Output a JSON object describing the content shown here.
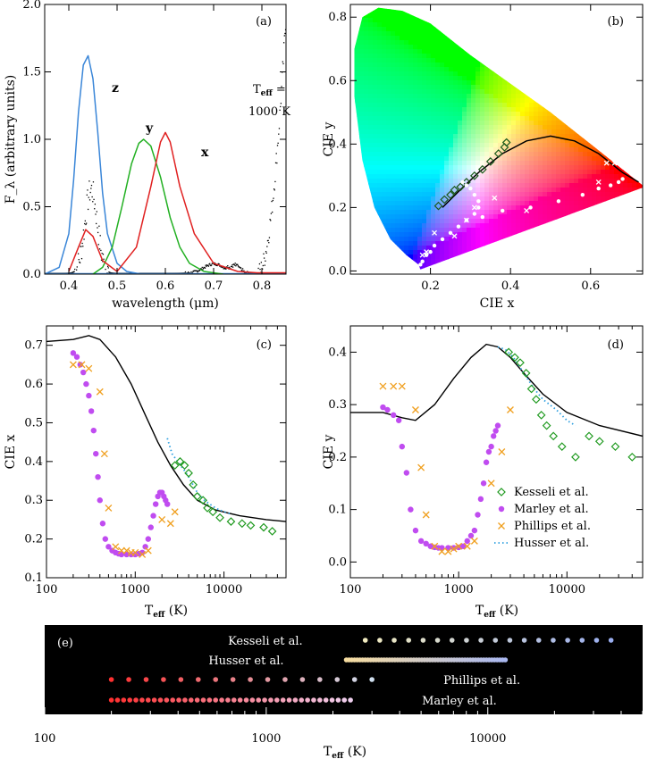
{
  "colors": {
    "z": "#3a86d8",
    "y": "#22b022",
    "x": "#e02020",
    "kesseli": "#1f9a1f",
    "marley": "#c04cf0",
    "phillips": "#f0a020",
    "husser": "#30a0e0",
    "locus": "#000000"
  },
  "chart_data": [
    {
      "id": "a",
      "type": "line",
      "panel_label": "(a)",
      "xlabel": "wavelength (μm)",
      "ylabel": "F_λ (arbitrary units)",
      "xlim": [
        0.35,
        0.85
      ],
      "ylim": [
        0,
        2.0
      ],
      "xticks": [
        0.4,
        0.5,
        0.6,
        0.7,
        0.8
      ],
      "yticks": [
        0.0,
        0.5,
        1.0,
        1.5,
        2.0
      ],
      "xtick_labels": [
        "0.4",
        "0.5",
        "0.6",
        "0.7",
        "0.8"
      ],
      "ytick_labels": [
        "0.0",
        "0.5",
        "1.0",
        "1.5",
        "2.0"
      ],
      "annotation": {
        "teff_label": "T",
        "teff_sub": "eff",
        "teff_eq": " =",
        "teff_value": "1000 K"
      },
      "series": [
        {
          "name": "z",
          "color_key": "z",
          "x": [
            0.35,
            0.38,
            0.4,
            0.41,
            0.42,
            0.43,
            0.44,
            0.45,
            0.46,
            0.47,
            0.48,
            0.5,
            0.52,
            0.55
          ],
          "y": [
            0,
            0.05,
            0.3,
            0.7,
            1.2,
            1.55,
            1.62,
            1.45,
            1.05,
            0.6,
            0.3,
            0.08,
            0.02,
            0
          ]
        },
        {
          "name": "y",
          "color_key": "y",
          "x": [
            0.45,
            0.47,
            0.49,
            0.51,
            0.53,
            0.545,
            0.555,
            0.57,
            0.59,
            0.61,
            0.63,
            0.65,
            0.68,
            0.72
          ],
          "y": [
            0,
            0.05,
            0.2,
            0.5,
            0.82,
            0.97,
            1.0,
            0.95,
            0.72,
            0.42,
            0.2,
            0.08,
            0.02,
            0
          ]
        },
        {
          "name": "x",
          "color_key": "x",
          "x": [
            0.4,
            0.42,
            0.435,
            0.45,
            0.47,
            0.5,
            0.54,
            0.57,
            0.59,
            0.6,
            0.61,
            0.63,
            0.66,
            0.7,
            0.75,
            0.79,
            0.85
          ],
          "y": [
            0.02,
            0.2,
            0.33,
            0.28,
            0.1,
            0.02,
            0.2,
            0.65,
            0.98,
            1.05,
            0.98,
            0.65,
            0.3,
            0.08,
            0.02,
            0.01,
            0.01
          ]
        }
      ],
      "spectrum_peaks": [
        {
          "center": 0.445,
          "width": 0.018,
          "height": 0.62,
          "noise": 0.2
        },
        {
          "center": 0.7,
          "width": 0.03,
          "height": 0.07,
          "noise": 0.02
        },
        {
          "center": 0.745,
          "width": 0.015,
          "height": 0.05,
          "noise": 0.02
        }
      ]
    },
    {
      "id": "b",
      "type": "scatter",
      "panel_label": "(b)",
      "xlabel": "CIE x",
      "ylabel": "CIE y",
      "xlim": [
        0.0,
        0.73
      ],
      "ylim": [
        -0.01,
        0.84
      ],
      "xticks": [
        0.2,
        0.4,
        0.6
      ],
      "yticks": [
        0.0,
        0.2,
        0.4,
        0.6,
        0.8
      ],
      "xtick_labels": [
        "0.2",
        "0.4",
        "0.6"
      ],
      "ytick_labels": [
        "0.0",
        "0.2",
        "0.4",
        "0.6",
        "0.8"
      ],
      "gamut": [
        [
          0.175,
          0.005
        ],
        [
          0.17,
          0.02
        ],
        [
          0.14,
          0.05
        ],
        [
          0.1,
          0.1
        ],
        [
          0.06,
          0.2
        ],
        [
          0.03,
          0.35
        ],
        [
          0.01,
          0.55
        ],
        [
          0.01,
          0.7
        ],
        [
          0.03,
          0.8
        ],
        [
          0.07,
          0.83
        ],
        [
          0.13,
          0.82
        ],
        [
          0.2,
          0.78
        ],
        [
          0.3,
          0.68
        ],
        [
          0.4,
          0.59
        ],
        [
          0.5,
          0.5
        ],
        [
          0.6,
          0.4
        ],
        [
          0.68,
          0.32
        ],
        [
          0.735,
          0.265
        ],
        [
          0.175,
          0.005
        ]
      ],
      "locus": {
        "x": [
          0.23,
          0.27,
          0.32,
          0.38,
          0.44,
          0.5,
          0.56,
          0.62,
          0.68,
          0.72
        ],
        "y": [
          0.2,
          0.25,
          0.31,
          0.37,
          0.41,
          0.425,
          0.41,
          0.37,
          0.31,
          0.28
        ]
      },
      "kesseli": {
        "x": [
          0.22,
          0.235,
          0.25,
          0.26,
          0.275,
          0.29,
          0.31,
          0.33,
          0.35,
          0.37,
          0.385,
          0.39
        ],
        "y": [
          0.205,
          0.225,
          0.24,
          0.255,
          0.265,
          0.28,
          0.3,
          0.32,
          0.345,
          0.37,
          0.39,
          0.405
        ]
      },
      "marley": {
        "x": [
          0.175,
          0.18,
          0.19,
          0.2,
          0.21,
          0.23,
          0.25,
          0.27,
          0.29,
          0.31,
          0.32,
          0.32,
          0.31,
          0.3,
          0.29,
          0.28,
          0.33,
          0.38,
          0.45,
          0.52,
          0.58,
          0.62,
          0.65,
          0.67,
          0.68
        ],
        "y": [
          0.02,
          0.03,
          0.05,
          0.06,
          0.08,
          0.1,
          0.12,
          0.14,
          0.16,
          0.18,
          0.2,
          0.22,
          0.24,
          0.26,
          0.27,
          0.28,
          0.17,
          0.19,
          0.2,
          0.22,
          0.24,
          0.26,
          0.27,
          0.28,
          0.29
        ]
      },
      "phillips": {
        "x": [
          0.18,
          0.19,
          0.21,
          0.26,
          0.29,
          0.31,
          0.36,
          0.44,
          0.62,
          0.64,
          0.66
        ],
        "y": [
          0.05,
          0.06,
          0.12,
          0.11,
          0.16,
          0.2,
          0.23,
          0.19,
          0.28,
          0.34,
          0.34
        ]
      },
      "husser": {
        "x": [
          0.24,
          0.26,
          0.28,
          0.3
        ],
        "y": [
          0.23,
          0.25,
          0.27,
          0.29
        ]
      }
    },
    {
      "id": "c",
      "type": "scatter",
      "panel_label": "(c)",
      "xlabel": "T_eff (K)",
      "ylabel": "CIE x",
      "xscale": "log",
      "xlim": [
        100,
        50000
      ],
      "ylim": [
        0.1,
        0.75
      ],
      "xticks": [
        100,
        1000,
        10000
      ],
      "xtick_labels": [
        "100",
        "1000",
        "10000"
      ],
      "yticks": [
        0.1,
        0.2,
        0.3,
        0.4,
        0.5,
        0.6,
        0.7
      ],
      "ytick_labels": [
        "0.1",
        "0.2",
        "0.3",
        "0.4",
        "0.5",
        "0.6",
        "0.7"
      ],
      "locus": {
        "x": [
          100,
          200,
          300,
          400,
          600,
          900,
          1300,
          1800,
          2500,
          3500,
          5000,
          8000,
          15000,
          30000,
          50000
        ],
        "y": [
          0.71,
          0.715,
          0.725,
          0.715,
          0.67,
          0.6,
          0.52,
          0.45,
          0.39,
          0.34,
          0.3,
          0.275,
          0.26,
          0.25,
          0.245
        ]
      },
      "kesseli": {
        "x": [
          2800,
          3200,
          3600,
          4000,
          4500,
          5000,
          5800,
          6500,
          7500,
          9000,
          12000,
          16000,
          20000,
          28000,
          35000
        ],
        "y": [
          0.39,
          0.4,
          0.39,
          0.37,
          0.34,
          0.31,
          0.3,
          0.28,
          0.27,
          0.255,
          0.245,
          0.24,
          0.235,
          0.23,
          0.22
        ]
      },
      "marley": {
        "x": [
          200,
          220,
          240,
          260,
          280,
          300,
          320,
          340,
          360,
          380,
          400,
          430,
          460,
          500,
          550,
          600,
          650,
          700,
          800,
          900,
          1000,
          1100,
          1200,
          1300,
          1400,
          1500,
          1600,
          1700,
          1800,
          1900,
          2000,
          2100,
          2200,
          2300
        ],
        "y": [
          0.68,
          0.67,
          0.65,
          0.63,
          0.6,
          0.57,
          0.53,
          0.48,
          0.42,
          0.36,
          0.3,
          0.24,
          0.2,
          0.18,
          0.17,
          0.165,
          0.162,
          0.16,
          0.16,
          0.16,
          0.16,
          0.162,
          0.165,
          0.18,
          0.2,
          0.23,
          0.26,
          0.29,
          0.31,
          0.32,
          0.32,
          0.31,
          0.3,
          0.29
        ]
      },
      "phillips": {
        "x": [
          200,
          250,
          300,
          400,
          450,
          500,
          600,
          700,
          800,
          900,
          1000,
          1200,
          1400,
          2000,
          2500,
          2800
        ],
        "y": [
          0.65,
          0.65,
          0.64,
          0.58,
          0.42,
          0.28,
          0.18,
          0.17,
          0.17,
          0.165,
          0.165,
          0.16,
          0.17,
          0.25,
          0.24,
          0.27
        ]
      },
      "husser": {
        "x": [
          2300,
          2600,
          3000,
          3500,
          4000,
          5000,
          6000,
          8000,
          10000,
          12000
        ],
        "y": [
          0.46,
          0.42,
          0.4,
          0.38,
          0.36,
          0.32,
          0.3,
          0.28,
          0.27,
          0.265
        ]
      }
    },
    {
      "id": "d",
      "type": "scatter",
      "panel_label": "(d)",
      "xlabel": "T_eff (K)",
      "ylabel": "CIE y",
      "xscale": "log",
      "xlim": [
        100,
        50000
      ],
      "ylim": [
        -0.03,
        0.45
      ],
      "xticks": [
        100,
        1000,
        10000
      ],
      "xtick_labels": [
        "100",
        "1000",
        "10000"
      ],
      "yticks": [
        0.0,
        0.1,
        0.2,
        0.3,
        0.4
      ],
      "ytick_labels": [
        "0.0",
        "0.1",
        "0.2",
        "0.3",
        "0.4"
      ],
      "locus": {
        "x": [
          100,
          200,
          300,
          400,
          600,
          900,
          1300,
          1800,
          2300,
          3000,
          4000,
          6000,
          10000,
          20000,
          50000
        ],
        "y": [
          0.285,
          0.285,
          0.275,
          0.27,
          0.3,
          0.35,
          0.39,
          0.415,
          0.41,
          0.39,
          0.36,
          0.32,
          0.285,
          0.26,
          0.24
        ]
      },
      "kesseli": {
        "x": [
          2900,
          3300,
          3700,
          4200,
          4700,
          5200,
          5800,
          6500,
          7500,
          9000,
          12000,
          16000,
          20000,
          28000,
          40000
        ],
        "y": [
          0.4,
          0.39,
          0.38,
          0.36,
          0.33,
          0.31,
          0.28,
          0.26,
          0.24,
          0.22,
          0.2,
          0.24,
          0.23,
          0.22,
          0.2
        ]
      },
      "marley": {
        "x": [
          200,
          220,
          250,
          280,
          300,
          330,
          360,
          400,
          450,
          500,
          550,
          600,
          650,
          700,
          800,
          900,
          1000,
          1100,
          1200,
          1300,
          1400,
          1500,
          1600,
          1700,
          1800,
          1900,
          2000,
          2100,
          2200,
          2300
        ],
        "y": [
          0.295,
          0.29,
          0.28,
          0.27,
          0.22,
          0.17,
          0.1,
          0.06,
          0.04,
          0.035,
          0.03,
          0.028,
          0.027,
          0.027,
          0.027,
          0.027,
          0.028,
          0.03,
          0.04,
          0.05,
          0.06,
          0.09,
          0.12,
          0.15,
          0.19,
          0.21,
          0.22,
          0.24,
          0.25,
          0.26
        ]
      },
      "phillips": {
        "x": [
          200,
          250,
          300,
          400,
          450,
          500,
          600,
          700,
          800,
          900,
          1000,
          1200,
          1400,
          2000,
          2500,
          3000
        ],
        "y": [
          0.335,
          0.335,
          0.335,
          0.29,
          0.18,
          0.09,
          0.03,
          0.02,
          0.02,
          0.025,
          0.03,
          0.03,
          0.04,
          0.15,
          0.21,
          0.29
        ]
      },
      "husser": {
        "x": [
          2300,
          2700,
          3200,
          4000,
          5000,
          6000,
          8000,
          10000,
          12000
        ],
        "y": [
          0.41,
          0.405,
          0.39,
          0.36,
          0.33,
          0.31,
          0.29,
          0.27,
          0.26
        ]
      },
      "legend": [
        {
          "label": "Kesseli et al.",
          "marker": "diamond",
          "color_key": "kesseli"
        },
        {
          "label": "Marley et al.",
          "marker": "circle",
          "color_key": "marley"
        },
        {
          "label": "Phillips et al.",
          "marker": "cross",
          "color_key": "phillips"
        },
        {
          "label": "Husser et al.",
          "marker": "dotted",
          "color_key": "husser"
        }
      ]
    },
    {
      "id": "e",
      "type": "scatter",
      "panel_label": "(e)",
      "xlabel": "T_eff (K)",
      "xscale": "log",
      "xlim": [
        100,
        50000
      ],
      "xticks": [
        100,
        1000,
        10000
      ],
      "xtick_labels": [
        "100",
        "1000",
        "10000"
      ],
      "rows": [
        {
          "label": "Kesseli et al.",
          "tmin": 2800,
          "tmax": 36000,
          "n": 18,
          "grad_start": "#f2ecc0",
          "grad_end": "#9aaef0",
          "label_side": "left"
        },
        {
          "label": "Husser et al.",
          "tmin": 2300,
          "tmax": 12000,
          "n": 60,
          "grad_start": "#f7dda0",
          "grad_end": "#aab8f0",
          "label_side": "left"
        },
        {
          "label": "Phillips et al.",
          "tmin": 200,
          "tmax": 3000,
          "n": 16,
          "grad_start": "#ff3030",
          "grad_end": "#d0e0f0",
          "label_side": "right"
        },
        {
          "label": "Marley et al.",
          "tmin": 200,
          "tmax": 2400,
          "n": 40,
          "grad_start": "#ff3030",
          "grad_end": "#f0d0f0",
          "label_side": "right"
        }
      ]
    }
  ]
}
